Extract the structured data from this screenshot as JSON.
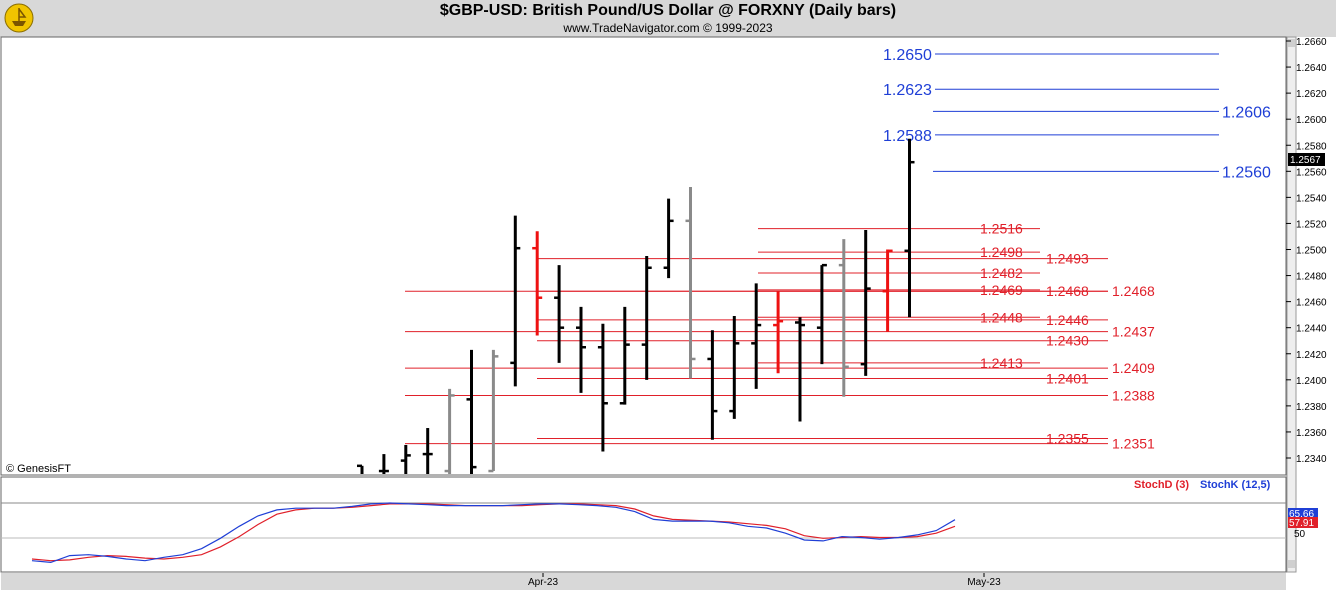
{
  "header": {
    "title": "$GBP-USD:  British Pound/US Dollar @ FORXNY  (Daily bars)",
    "subtitle": "www.TradeNavigator.com © 1999-2023"
  },
  "copyright": "© GenesisFT",
  "indicator": {
    "stochd_label": "StochD (3)",
    "stochk_label": "StochK (12,5)",
    "level_label": "50"
  },
  "colors": {
    "bar_black": "#000000",
    "bar_red": "#ee1111",
    "bar_gray": "#8a8a8a",
    "level_blue": "#1f3fd6",
    "level_red": "#e0202a",
    "stochd": "#e0202a",
    "stochk": "#1f3fd6",
    "header_bg": "#d8d8d8",
    "price_tag_bg": "#000000"
  },
  "chart_data": {
    "type": "ohlc",
    "x_ticks": [
      "Apr-23",
      "May-23"
    ],
    "y_axis": {
      "min": 1.232,
      "max": 1.267,
      "ticks": [
        "1.2340",
        "1.2360",
        "1.2380",
        "1.2400",
        "1.2420",
        "1.2440",
        "1.2460",
        "1.2480",
        "1.2500",
        "1.2520",
        "1.2540",
        "1.2560",
        "1.2580",
        "1.2600",
        "1.2620",
        "1.2640",
        "1.2660"
      ]
    },
    "last_price": "1.2567",
    "bars": [
      {
        "o": 1.2334,
        "h": 1.2334,
        "l": 1.23,
        "c": 1.232,
        "color": "black"
      },
      {
        "o": 1.233,
        "h": 1.2343,
        "l": 1.23,
        "c": 1.233,
        "color": "black"
      },
      {
        "o": 1.2338,
        "h": 1.235,
        "l": 1.23,
        "c": 1.2342,
        "color": "black"
      },
      {
        "o": 1.2343,
        "h": 1.2363,
        "l": 1.23,
        "c": 1.2343,
        "color": "black"
      },
      {
        "o": 1.233,
        "h": 1.2393,
        "l": 1.23,
        "c": 1.2388,
        "color": "gray"
      },
      {
        "o": 1.2385,
        "h": 1.2423,
        "l": 1.232,
        "c": 1.2333,
        "color": "black"
      },
      {
        "o": 1.233,
        "h": 1.2423,
        "l": 1.233,
        "c": 1.2418,
        "color": "gray"
      },
      {
        "o": 1.2413,
        "h": 1.2526,
        "l": 1.2395,
        "c": 1.2501,
        "color": "black"
      },
      {
        "o": 1.2501,
        "h": 1.2514,
        "l": 1.2434,
        "c": 1.2463,
        "color": "red"
      },
      {
        "o": 1.2463,
        "h": 1.2488,
        "l": 1.2413,
        "c": 1.244,
        "color": "black"
      },
      {
        "o": 1.244,
        "h": 1.2456,
        "l": 1.239,
        "c": 1.2425,
        "color": "black"
      },
      {
        "o": 1.2425,
        "h": 1.2443,
        "l": 1.2345,
        "c": 1.2382,
        "color": "black"
      },
      {
        "o": 1.2382,
        "h": 1.2456,
        "l": 1.2381,
        "c": 1.2427,
        "color": "black"
      },
      {
        "o": 1.2427,
        "h": 1.2495,
        "l": 1.24,
        "c": 1.2486,
        "color": "black"
      },
      {
        "o": 1.2486,
        "h": 1.2539,
        "l": 1.2478,
        "c": 1.2522,
        "color": "black"
      },
      {
        "o": 1.2522,
        "h": 1.2548,
        "l": 1.2401,
        "c": 1.2416,
        "color": "gray"
      },
      {
        "o": 1.2416,
        "h": 1.2438,
        "l": 1.2354,
        "c": 1.2376,
        "color": "black"
      },
      {
        "o": 1.2376,
        "h": 1.2449,
        "l": 1.237,
        "c": 1.2428,
        "color": "black"
      },
      {
        "o": 1.2428,
        "h": 1.2474,
        "l": 1.2393,
        "c": 1.2442,
        "color": "black"
      },
      {
        "o": 1.2442,
        "h": 1.2468,
        "l": 1.2405,
        "c": 1.2445,
        "color": "red"
      },
      {
        "o": 1.2444,
        "h": 1.2448,
        "l": 1.2368,
        "c": 1.2442,
        "color": "black"
      },
      {
        "o": 1.244,
        "h": 1.2488,
        "l": 1.2412,
        "c": 1.2488,
        "color": "black"
      },
      {
        "o": 1.2488,
        "h": 1.2508,
        "l": 1.2387,
        "c": 1.241,
        "color": "gray"
      },
      {
        "o": 1.2412,
        "h": 1.2515,
        "l": 1.2403,
        "c": 1.247,
        "color": "black"
      },
      {
        "o": 1.2468,
        "h": 1.25,
        "l": 1.2437,
        "c": 1.2499,
        "color": "red"
      },
      {
        "o": 1.2499,
        "h": 1.2585,
        "l": 1.2448,
        "c": 1.2567,
        "color": "black"
      }
    ],
    "levels": [
      {
        "label": "1.2650",
        "value": 1.265,
        "color": "blue",
        "from_bar": 20,
        "label_side": "left"
      },
      {
        "label": "1.2623",
        "value": 1.2623,
        "color": "blue",
        "from_bar": 20,
        "label_side": "left"
      },
      {
        "label": "1.2606",
        "value": 1.2606,
        "color": "blue",
        "from_bar": 24,
        "label_side": "right"
      },
      {
        "label": "1.2588",
        "value": 1.2588,
        "color": "blue",
        "from_bar": 20,
        "label_side": "left"
      },
      {
        "label": "1.2560",
        "value": 1.256,
        "color": "blue",
        "from_bar": 24,
        "label_side": "right"
      },
      {
        "label": "1.2516",
        "value": 1.2516,
        "color": "red",
        "from_bar": 17,
        "label_side": "mid"
      },
      {
        "label": "1.2498",
        "value": 1.2498,
        "color": "red",
        "from_bar": 17,
        "label_side": "mid"
      },
      {
        "label": "1.2493",
        "value": 1.2493,
        "color": "red",
        "from_bar": 12,
        "label_side": "mid2"
      },
      {
        "label": "1.2482",
        "value": 1.2482,
        "color": "red",
        "from_bar": 17,
        "label_side": "mid"
      },
      {
        "label": "1.2469",
        "value": 1.2469,
        "color": "red",
        "from_bar": 17,
        "label_side": "mid"
      },
      {
        "label": "1.2468",
        "value": 1.2468,
        "color": "red",
        "from_bar": 12,
        "label_side": "mid2"
      },
      {
        "label": "1.2468",
        "value": 1.2468,
        "color": "red",
        "from_bar": 9,
        "label_side": "mid3"
      },
      {
        "label": "1.2448",
        "value": 1.2448,
        "color": "red",
        "from_bar": 17,
        "label_side": "mid"
      },
      {
        "label": "1.2446",
        "value": 1.2446,
        "color": "red",
        "from_bar": 12,
        "label_side": "mid2"
      },
      {
        "label": "1.2437",
        "value": 1.2437,
        "color": "red",
        "from_bar": 9,
        "label_side": "mid3"
      },
      {
        "label": "1.2430",
        "value": 1.243,
        "color": "red",
        "from_bar": 12,
        "label_side": "mid2"
      },
      {
        "label": "1.2413",
        "value": 1.2413,
        "color": "red",
        "from_bar": 17,
        "label_side": "mid"
      },
      {
        "label": "1.2409",
        "value": 1.2409,
        "color": "red",
        "from_bar": 9,
        "label_side": "mid3"
      },
      {
        "label": "1.2401",
        "value": 1.2401,
        "color": "red",
        "from_bar": 12,
        "label_side": "mid2"
      },
      {
        "label": "1.2388",
        "value": 1.2388,
        "color": "red",
        "from_bar": 9,
        "label_side": "mid3"
      },
      {
        "label": "1.2355",
        "value": 1.2355,
        "color": "red",
        "from_bar": 12,
        "label_side": "mid2"
      },
      {
        "label": "1.2351",
        "value": 1.2351,
        "color": "red",
        "from_bar": 9,
        "label_side": "mid3"
      }
    ],
    "stoch": {
      "k_last": "65.66",
      "d_last": "57.91",
      "k": [
        18,
        16,
        24,
        25,
        23,
        20,
        18,
        22,
        25,
        32,
        44,
        58,
        70,
        77,
        79,
        79,
        79,
        81,
        84,
        85,
        84,
        83,
        82,
        82,
        82,
        82,
        83,
        84,
        84,
        83,
        82,
        80,
        75,
        66,
        64,
        64,
        64,
        62,
        58,
        56,
        50,
        42,
        41,
        46,
        45,
        43,
        45,
        48,
        53,
        65.66
      ],
      "d": [
        20,
        18,
        19,
        22,
        24,
        23,
        21,
        20,
        22,
        25,
        34,
        46,
        60,
        72,
        77,
        79,
        79,
        80,
        82,
        84,
        84,
        84,
        83,
        82,
        82,
        82,
        82,
        83,
        84,
        84,
        83,
        82,
        78,
        70,
        66,
        65,
        64,
        63,
        61,
        59,
        55,
        47,
        44,
        45,
        46,
        45,
        45,
        46,
        50,
        57.91
      ]
    }
  }
}
